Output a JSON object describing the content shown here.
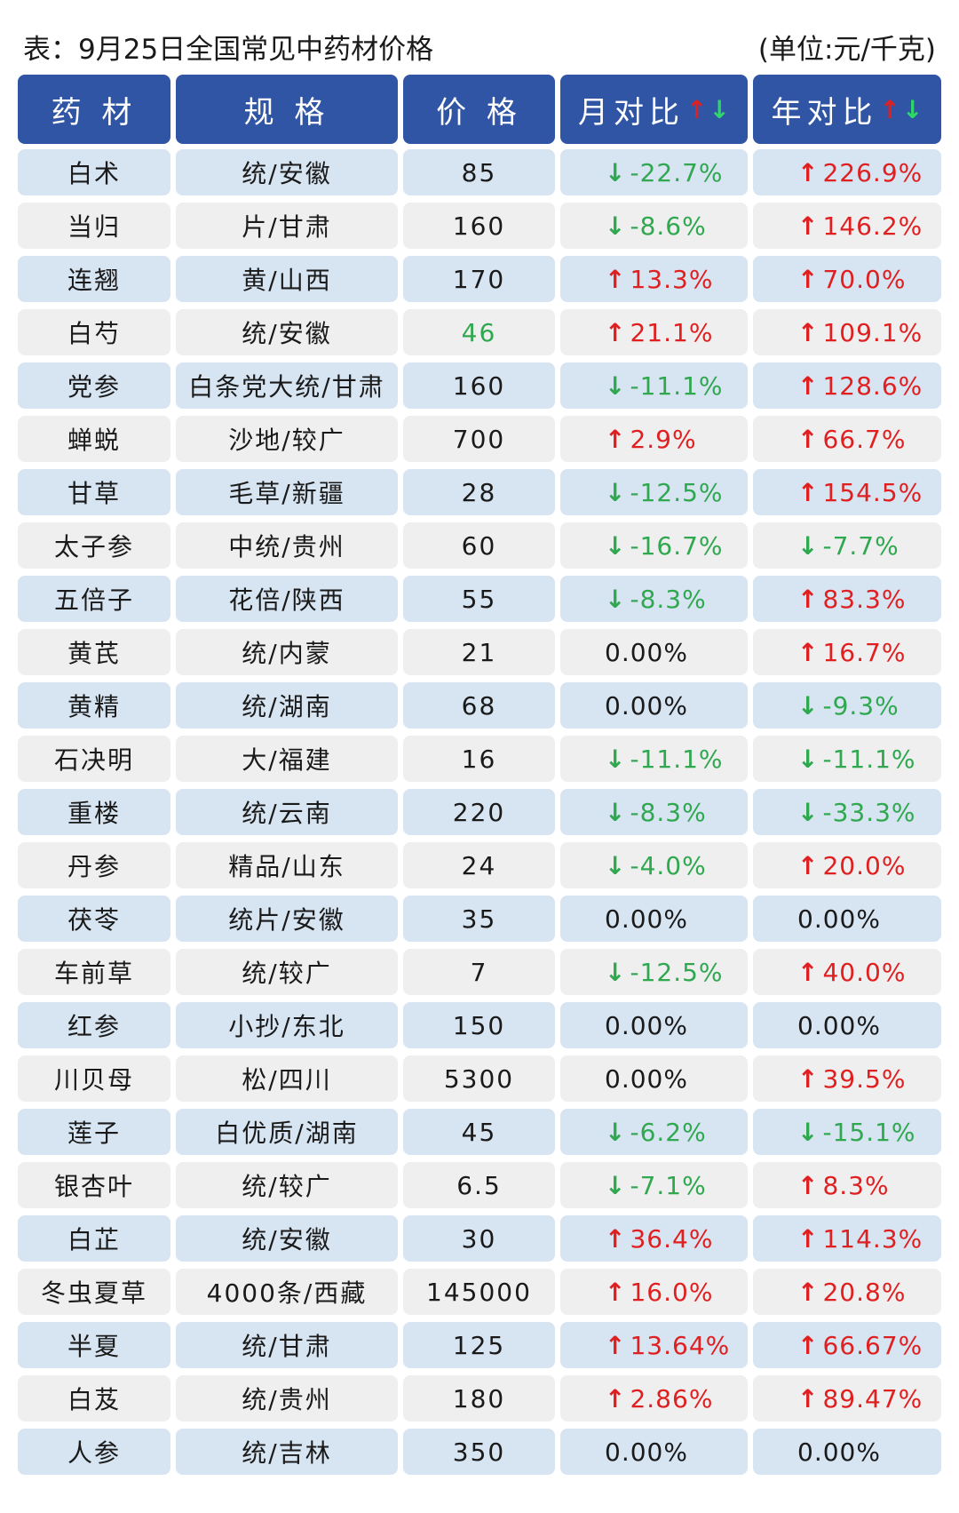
{
  "title": "表：9月25日全国常见中药材价格",
  "unit": "(单位:元/千克)",
  "colors": {
    "header_bg": "#2f55a4",
    "row_blue": "#d7e4f1",
    "row_gray": "#efefef",
    "up": "#e02020",
    "down": "#2fa84f"
  },
  "headers": {
    "name": "药 材",
    "spec": "规 格",
    "price": "价 格",
    "month": "月对比",
    "year": "年对比",
    "up_arrow": "↑",
    "down_arrow": "↓"
  },
  "rows": [
    {
      "name": "白术",
      "spec": "统/安徽",
      "price": "85",
      "month": "-22.7%",
      "month_dir": "down",
      "year": "226.9%",
      "year_dir": "up"
    },
    {
      "name": "当归",
      "spec": "片/甘肃",
      "price": "160",
      "month": "-8.6%",
      "month_dir": "down",
      "year": "146.2%",
      "year_dir": "up"
    },
    {
      "name": "连翘",
      "spec": "黄/山西",
      "price": "170",
      "month": "13.3%",
      "month_dir": "up",
      "year": "70.0%",
      "year_dir": "up"
    },
    {
      "name": "白芍",
      "spec": "统/安徽",
      "price": "46",
      "price_color": "green",
      "month": "21.1%",
      "month_dir": "up",
      "year": "109.1%",
      "year_dir": "up"
    },
    {
      "name": "党参",
      "spec": "白条党大统/甘肃",
      "price": "160",
      "month": "-11.1%",
      "month_dir": "down",
      "year": "128.6%",
      "year_dir": "up"
    },
    {
      "name": "蝉蜕",
      "spec": "沙地/较广",
      "price": "700",
      "month": "2.9%",
      "month_dir": "up",
      "year": "66.7%",
      "year_dir": "up"
    },
    {
      "name": "甘草",
      "spec": "毛草/新疆",
      "price": "28",
      "month": "-12.5%",
      "month_dir": "down",
      "year": "154.5%",
      "year_dir": "up"
    },
    {
      "name": "太子参",
      "spec": "中统/贵州",
      "price": "60",
      "month": "-16.7%",
      "month_dir": "down",
      "year": "-7.7%",
      "year_dir": "down"
    },
    {
      "name": "五倍子",
      "spec": "花倍/陕西",
      "price": "55",
      "month": "-8.3%",
      "month_dir": "down",
      "year": "83.3%",
      "year_dir": "up"
    },
    {
      "name": "黄芪",
      "spec": "统/内蒙",
      "price": "21",
      "month": "0.00%",
      "month_dir": "flat",
      "year": "16.7%",
      "year_dir": "up"
    },
    {
      "name": "黄精",
      "spec": "统/湖南",
      "price": "68",
      "month": "0.00%",
      "month_dir": "flat",
      "year": "-9.3%",
      "year_dir": "down"
    },
    {
      "name": "石决明",
      "spec": "大/福建",
      "price": "16",
      "month": "-11.1%",
      "month_dir": "down",
      "year": "-11.1%",
      "year_dir": "down"
    },
    {
      "name": "重楼",
      "spec": "统/云南",
      "price": "220",
      "month": "-8.3%",
      "month_dir": "down",
      "year": "-33.3%",
      "year_dir": "down"
    },
    {
      "name": "丹参",
      "spec": "精品/山东",
      "price": "24",
      "month": "-4.0%",
      "month_dir": "down",
      "year": "20.0%",
      "year_dir": "up"
    },
    {
      "name": "茯苓",
      "spec": "统片/安徽",
      "price": "35",
      "month": "0.00%",
      "month_dir": "flat",
      "year": "0.00%",
      "year_dir": "flat"
    },
    {
      "name": "车前草",
      "spec": "统/较广",
      "price": "7",
      "month": "-12.5%",
      "month_dir": "down",
      "year": "40.0%",
      "year_dir": "up"
    },
    {
      "name": "红参",
      "spec": "小抄/东北",
      "price": "150",
      "month": "0.00%",
      "month_dir": "flat",
      "year": "0.00%",
      "year_dir": "flat"
    },
    {
      "name": "川贝母",
      "spec": "松/四川",
      "price": "5300",
      "month": "0.00%",
      "month_dir": "flat",
      "year": "39.5%",
      "year_dir": "up"
    },
    {
      "name": "莲子",
      "spec": "白优质/湖南",
      "price": "45",
      "month": "-6.2%",
      "month_dir": "down",
      "year": "-15.1%",
      "year_dir": "down"
    },
    {
      "name": "银杏叶",
      "spec": "统/较广",
      "price": "6.5",
      "month": "-7.1%",
      "month_dir": "down",
      "year": "8.3%",
      "year_dir": "up"
    },
    {
      "name": "白芷",
      "spec": "统/安徽",
      "price": "30",
      "month": "36.4%",
      "month_dir": "up",
      "year": "114.3%",
      "year_dir": "up"
    },
    {
      "name": "冬虫夏草",
      "spec": "4000条/西藏",
      "price": "145000",
      "month": "16.0%",
      "month_dir": "up",
      "year": "20.8%",
      "year_dir": "up"
    },
    {
      "name": "半夏",
      "spec": "统/甘肃",
      "price": "125",
      "month": "13.64%",
      "month_dir": "up",
      "year": "66.67%",
      "year_dir": "up"
    },
    {
      "name": "白芨",
      "spec": "统/贵州",
      "price": "180",
      "month": "2.86%",
      "month_dir": "up",
      "year": "89.47%",
      "year_dir": "up"
    },
    {
      "name": "人参",
      "spec": "统/吉林",
      "price": "350",
      "month": "0.00%",
      "month_dir": "flat",
      "year": "0.00%",
      "year_dir": "flat"
    }
  ]
}
